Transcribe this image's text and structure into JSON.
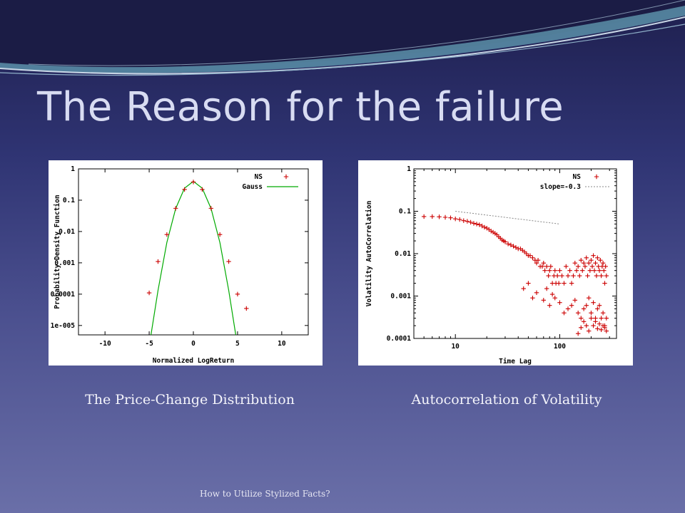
{
  "slide": {
    "title": "The Reason for the failure",
    "caption_left": "The Price-Change Distribution",
    "caption_right": "Autocorrelation of Volatility",
    "footer": "How to Utilize Stylized Facts?"
  },
  "colors": {
    "points": "#cc0000",
    "gauss": "#00aa00",
    "slope": "#888888",
    "title": "#d8dcf2"
  },
  "chart_data": [
    {
      "type": "scatter",
      "xlabel": "Normalized LogReturn",
      "ylabel": "Probability Density Function",
      "xlim": [
        -13,
        13
      ],
      "ylim_log10": [
        -5.3,
        0
      ],
      "y_scale": "log",
      "xticks": [
        -10,
        -5,
        0,
        5,
        10
      ],
      "xtick_labels": [
        "-10",
        "-5",
        "0",
        "5",
        "10"
      ],
      "yticks": [
        1,
        0.1,
        0.01,
        0.001,
        0.0001,
        1e-05
      ],
      "ytick_labels": [
        "1",
        "0.1",
        "0.01",
        "0.001",
        "0.0001",
        "1e-005"
      ],
      "legend": [
        {
          "label": "NS",
          "style": "points"
        },
        {
          "label": "Gauss",
          "style": "line"
        }
      ],
      "legend_position": "top-right",
      "series": [
        {
          "name": "NS",
          "style": "points",
          "x": [
            -5,
            -4,
            -3,
            -2,
            -1,
            0,
            1,
            2,
            3,
            4,
            5,
            6
          ],
          "y": [
            0.00011,
            0.0011,
            0.008,
            0.055,
            0.22,
            0.38,
            0.22,
            0.055,
            0.008,
            0.0011,
            0.0001,
            3.5e-05
          ]
        },
        {
          "name": "Gauss",
          "style": "line",
          "x": [
            -4.8,
            -4,
            -3,
            -2,
            -1,
            0,
            1,
            2,
            3,
            4,
            4.8
          ],
          "y": [
            3.9e-06,
            0.000134,
            0.00443,
            0.054,
            0.242,
            0.399,
            0.242,
            0.054,
            0.00443,
            0.000134,
            3.9e-06
          ]
        }
      ]
    },
    {
      "type": "scatter",
      "xlabel": "Time Lag",
      "ylabel": "Volatility AutoCorrelation",
      "x_scale": "log",
      "y_scale": "log",
      "xlim": [
        4,
        350
      ],
      "ylim": [
        0.0001,
        1
      ],
      "xticks": [
        10,
        100
      ],
      "xtick_labels": [
        "10",
        "100"
      ],
      "yticks": [
        1,
        0.1,
        0.01,
        0.001,
        0.0001
      ],
      "ytick_labels": [
        "1",
        "0.1",
        "0.01",
        "0.001",
        "0.0001"
      ],
      "legend": [
        {
          "label": "NS",
          "style": "points"
        },
        {
          "label": "slope=-0.3",
          "style": "dotted"
        }
      ],
      "legend_position": "top-right",
      "series": [
        {
          "name": "NS",
          "style": "points",
          "x": [
            5,
            6,
            7,
            8,
            9,
            10,
            11,
            12,
            13,
            14,
            15,
            16,
            17,
            18,
            19,
            20,
            21,
            22,
            23,
            24,
            25,
            26,
            27,
            28,
            29,
            30,
            32,
            34,
            36,
            38,
            40,
            42,
            44,
            46,
            48,
            50,
            52,
            55,
            58,
            60,
            62,
            65,
            68,
            70,
            72,
            75,
            78,
            80,
            82,
            85,
            88,
            90,
            92,
            95,
            98,
            100,
            105,
            110,
            115,
            120,
            125,
            130,
            135,
            140,
            145,
            150,
            155,
            160,
            165,
            170,
            175,
            180,
            185,
            190,
            195,
            200,
            205,
            210,
            215,
            220,
            225,
            230,
            235,
            240,
            245,
            250,
            255,
            260,
            265,
            270,
            275,
            280,
            45,
            50,
            55,
            60,
            70,
            75,
            80,
            85,
            90,
            100,
            110,
            120,
            130,
            140,
            150,
            160,
            170,
            180,
            190,
            200,
            210,
            220,
            230,
            240,
            250,
            260,
            270,
            280,
            150,
            160,
            170,
            180,
            190,
            200,
            210,
            220,
            230,
            240,
            250,
            260,
            270,
            280
          ],
          "y": [
            0.075,
            0.075,
            0.074,
            0.072,
            0.07,
            0.066,
            0.064,
            0.06,
            0.058,
            0.055,
            0.052,
            0.05,
            0.048,
            0.045,
            0.042,
            0.04,
            0.037,
            0.034,
            0.032,
            0.03,
            0.028,
            0.025,
            0.023,
            0.021,
            0.02,
            0.019,
            0.017,
            0.016,
            0.015,
            0.014,
            0.013,
            0.013,
            0.012,
            0.011,
            0.01,
            0.009,
            0.009,
            0.008,
            0.007,
            0.006,
            0.007,
            0.005,
            0.005,
            0.006,
            0.004,
            0.005,
            0.003,
            0.004,
            0.005,
            0.002,
            0.003,
            0.004,
            0.002,
            0.003,
            0.002,
            0.004,
            0.003,
            0.002,
            0.005,
            0.003,
            0.004,
            0.002,
            0.003,
            0.006,
            0.004,
            0.005,
            0.003,
            0.007,
            0.004,
            0.006,
            0.005,
            0.008,
            0.003,
            0.006,
            0.004,
            0.007,
            0.005,
            0.009,
            0.004,
            0.006,
            0.003,
            0.008,
            0.005,
            0.004,
            0.007,
            0.003,
            0.005,
            0.006,
            0.004,
            0.002,
            0.005,
            0.003,
            0.0015,
            0.002,
            0.0009,
            0.0012,
            0.0008,
            0.0015,
            0.0006,
            0.0011,
            0.0009,
            0.0007,
            0.0004,
            0.0005,
            0.0006,
            0.0008,
            0.0004,
            0.0003,
            0.0005,
            0.0006,
            0.0009,
            0.0004,
            0.0007,
            0.0003,
            0.0005,
            0.0006,
            0.0003,
            0.0004,
            0.0002,
            0.0003,
            0.00013,
            0.00018,
            0.00025,
            0.0002,
            0.00015,
            0.0003,
            0.0002,
            0.00025,
            0.00017,
            0.00022,
            0.00016,
            0.0002,
            0.00018,
            0.00015
          ]
        },
        {
          "name": "slope=-0.3",
          "style": "dotted",
          "x": [
            10,
            100
          ],
          "y": [
            0.1,
            0.05
          ]
        }
      ]
    }
  ]
}
